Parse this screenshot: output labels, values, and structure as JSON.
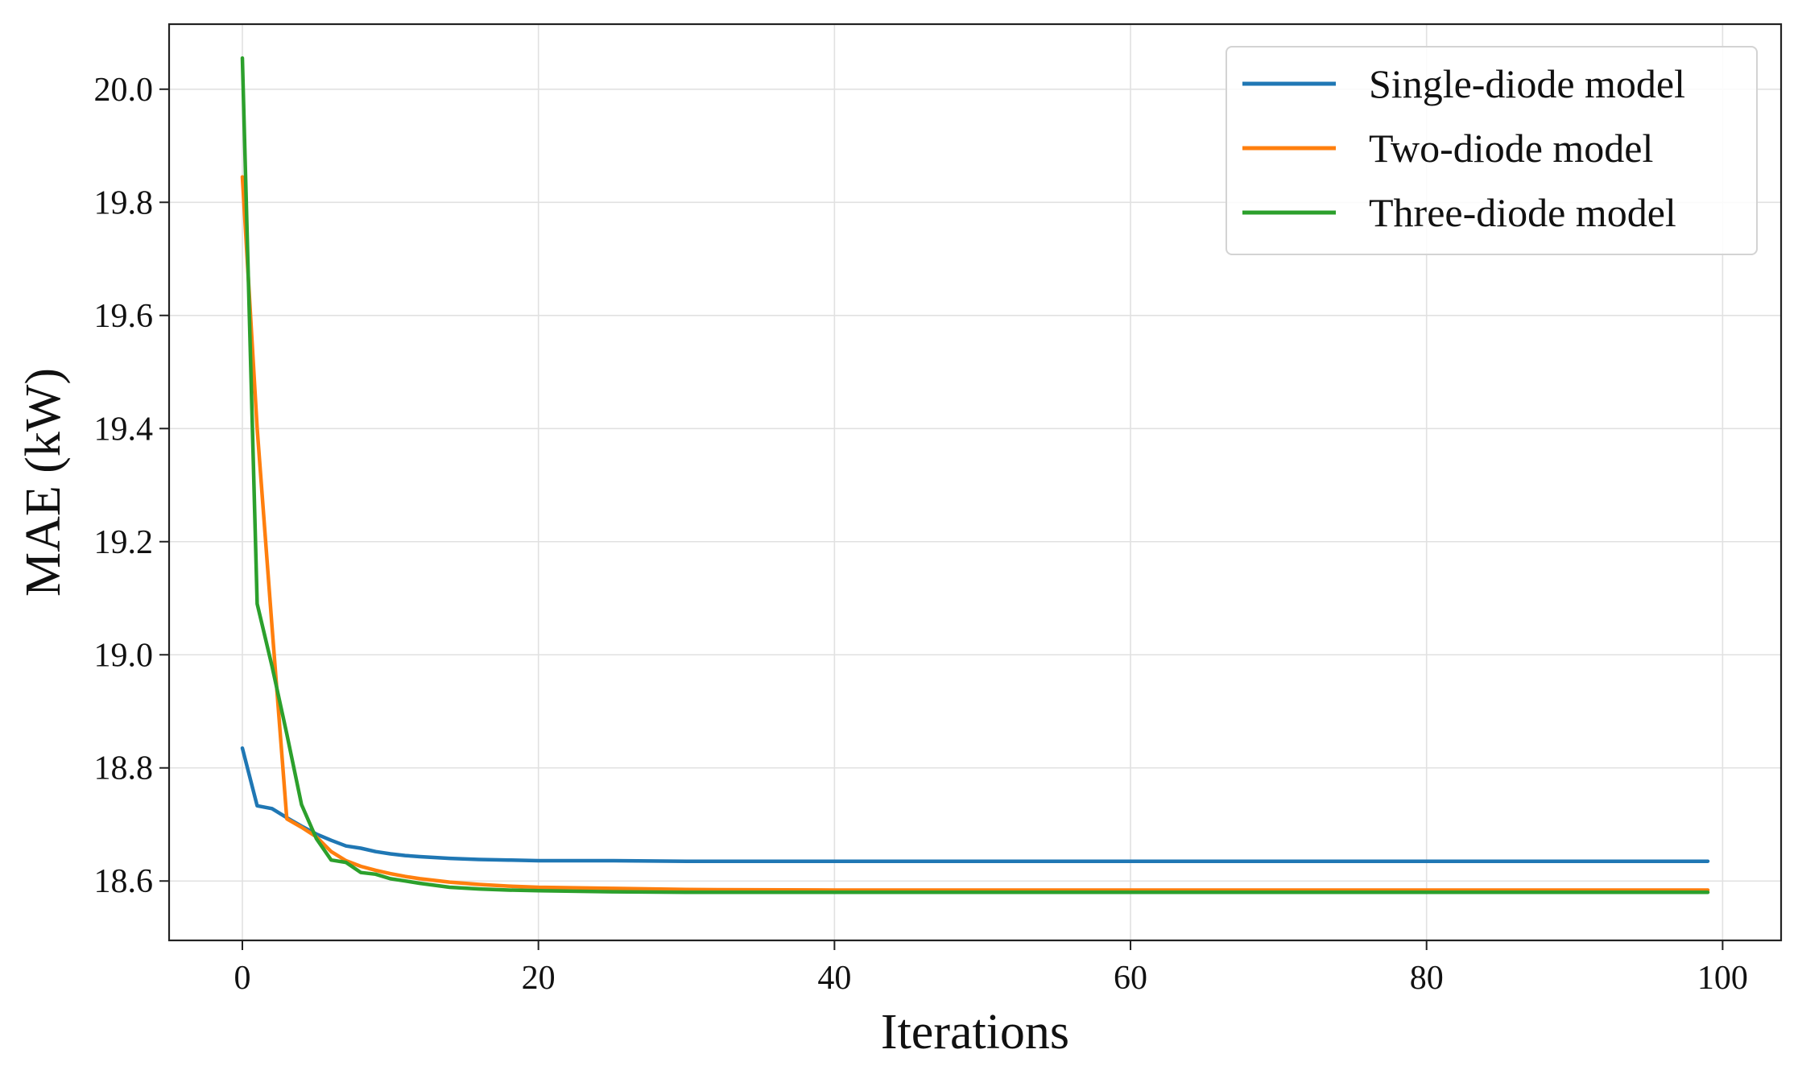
{
  "chart_data": {
    "type": "line",
    "title": "",
    "xlabel": "Iterations",
    "ylabel": "MAE (kW)",
    "xlim": [
      -4.95,
      103.95
    ],
    "ylim": [
      18.495,
      20.115
    ],
    "x_ticks": [
      0,
      20,
      40,
      60,
      80,
      100
    ],
    "x_tick_labels": [
      "0",
      "20",
      "40",
      "60",
      "80",
      "100"
    ],
    "y_ticks": [
      18.6,
      18.8,
      19.0,
      19.2,
      19.4,
      19.6,
      19.8,
      20.0
    ],
    "y_tick_labels": [
      "18.6",
      "18.8",
      "19.0",
      "19.2",
      "19.4",
      "19.6",
      "19.8",
      "20.0"
    ],
    "grid": true,
    "legend_position": "top-right",
    "series": [
      {
        "name": "Single-diode model",
        "color": "#1f77b4",
        "x": [
          0,
          1,
          2,
          3,
          4,
          5,
          6,
          7,
          8,
          9,
          10,
          11,
          12,
          14,
          16,
          18,
          20,
          25,
          30,
          40,
          50,
          60,
          70,
          80,
          90,
          99
        ],
        "y": [
          18.835,
          18.733,
          18.728,
          18.712,
          18.697,
          18.683,
          18.672,
          18.662,
          18.658,
          18.652,
          18.648,
          18.645,
          18.643,
          18.64,
          18.638,
          18.637,
          18.636,
          18.636,
          18.635,
          18.635,
          18.635,
          18.635,
          18.635,
          18.635,
          18.635,
          18.635
        ]
      },
      {
        "name": "Two-diode model",
        "color": "#ff7f0e",
        "x": [
          0,
          1,
          2,
          3,
          4,
          5,
          6,
          7,
          8,
          9,
          10,
          11,
          12,
          14,
          16,
          18,
          20,
          25,
          30,
          40,
          50,
          60,
          70,
          80,
          90,
          99
        ],
        "y": [
          19.845,
          19.4,
          19.05,
          18.71,
          18.695,
          18.678,
          18.652,
          18.636,
          18.626,
          18.619,
          18.613,
          18.608,
          18.604,
          18.598,
          18.594,
          18.591,
          18.589,
          18.587,
          18.585,
          18.584,
          18.584,
          18.584,
          18.584,
          18.584,
          18.584,
          18.584
        ]
      },
      {
        "name": "Three-diode model",
        "color": "#2ca02c",
        "x": [
          0,
          1,
          2,
          3,
          4,
          5,
          6,
          7,
          8,
          9,
          10,
          11,
          12,
          14,
          16,
          18,
          20,
          25,
          30,
          40,
          50,
          60,
          70,
          80,
          90,
          99
        ],
        "y": [
          20.055,
          19.09,
          18.98,
          18.86,
          18.735,
          18.675,
          18.637,
          18.633,
          18.615,
          18.612,
          18.604,
          18.6,
          18.596,
          18.589,
          18.586,
          18.584,
          18.583,
          18.581,
          18.58,
          18.58,
          18.58,
          18.58,
          18.58,
          18.58,
          18.58,
          18.58
        ]
      }
    ]
  }
}
